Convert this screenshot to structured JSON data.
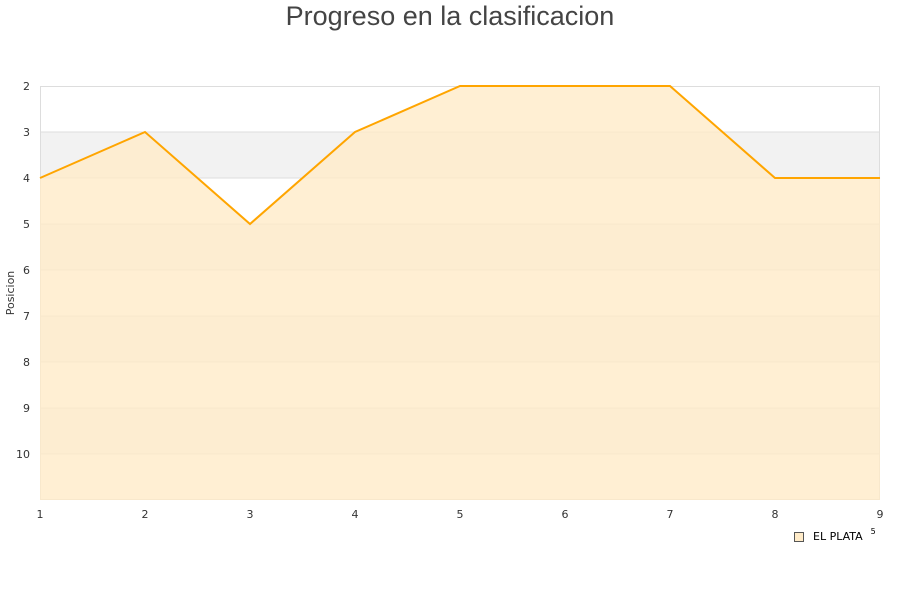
{
  "chart_data": {
    "type": "area",
    "title": "Progreso en la clasificacion",
    "xlabel": "",
    "ylabel": "Posicion",
    "x": [
      1,
      2,
      3,
      4,
      5,
      6,
      7,
      8,
      9
    ],
    "series": [
      {
        "name": "EL PLATA",
        "values": [
          4,
          3,
          5,
          3,
          2,
          2,
          2,
          4,
          4
        ],
        "color": "#ffa500",
        "fill": "#ffebc8"
      }
    ],
    "xlim": [
      1,
      9
    ],
    "ylim": [
      2,
      11
    ],
    "y_reversed": true,
    "yticks": [
      2,
      3,
      4,
      5,
      6,
      7,
      8,
      9,
      10
    ],
    "xticks": [
      1,
      2,
      3,
      4,
      5,
      6,
      7,
      8,
      9
    ],
    "grid": true,
    "band_color": "#f2f2f2",
    "legend": "bottom-right",
    "legend_extra": "5"
  }
}
